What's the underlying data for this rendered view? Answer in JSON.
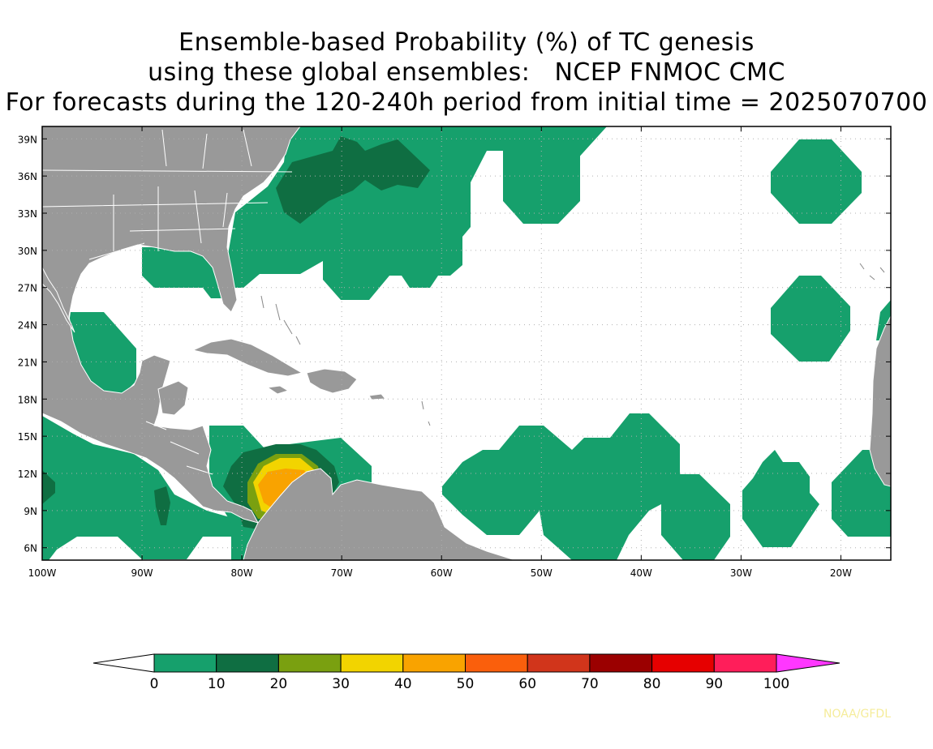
{
  "title": {
    "line1": "Ensemble-based Probability (%) of TC genesis",
    "line2": "using these global ensembles:   NCEP FNMOC CMC",
    "line3": "For forecasts during the 120-240h period from initial time = 2025070700"
  },
  "map": {
    "lat_labels": [
      "39N",
      "36N",
      "33N",
      "30N",
      "27N",
      "24N",
      "21N",
      "18N",
      "15N",
      "12N",
      "9N",
      "6N"
    ],
    "lon_labels": [
      "100W",
      "90W",
      "80W",
      "70W",
      "60W",
      "50W",
      "40W",
      "30W",
      "20W"
    ],
    "lat_values": [
      39,
      36,
      33,
      30,
      27,
      24,
      21,
      18,
      15,
      12,
      9,
      6
    ],
    "lon_values": [
      -100,
      -90,
      -80,
      -70,
      -60,
      -50,
      -40,
      -30,
      -20
    ],
    "extent": {
      "lon_min": -100,
      "lon_max": -15,
      "lat_min": 5,
      "lat_max": 40
    },
    "colors": {
      "land": "#999999",
      "ocean": "#ffffff",
      "grid": "#b0b0b0"
    }
  },
  "colorbar": {
    "labels": [
      "0",
      "10",
      "20",
      "30",
      "40",
      "50",
      "60",
      "70",
      "80",
      "90",
      "100"
    ],
    "colors": [
      "#16a06c",
      "#0f6e42",
      "#7aa010",
      "#f2d400",
      "#f9a300",
      "#fa5f0c",
      "#d1351b",
      "#9b0000",
      "#e60000",
      "#ff1e5a"
    ],
    "over_color": "#ff37ff",
    "under_color": "#ffffff"
  },
  "credit": "NOAA/GFDL"
}
